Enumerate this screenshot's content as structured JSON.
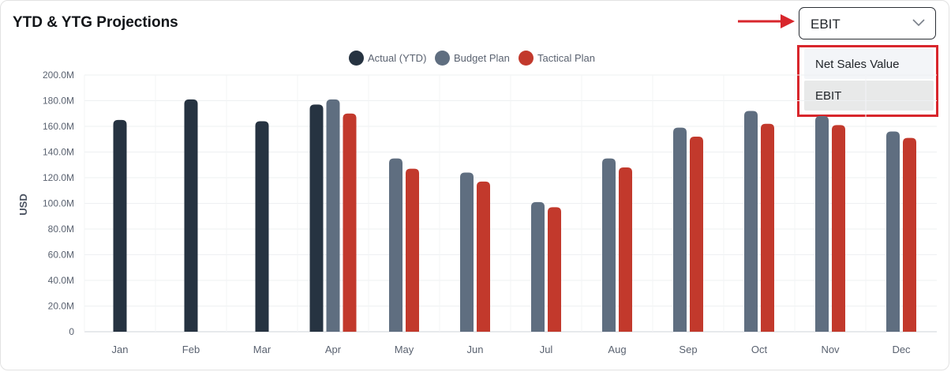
{
  "header": {
    "title": "YTD & YTG Projections"
  },
  "metric_select": {
    "value": "EBIT",
    "options": [
      "Net Sales Value",
      "EBIT"
    ]
  },
  "colors": {
    "actual": "#263341",
    "budget": "#5f6e80",
    "tactical": "#c2392c",
    "annotation": "#d8262c"
  },
  "chart_data": {
    "type": "bar",
    "title": "",
    "xlabel": "",
    "ylabel": "USD",
    "ylim": [
      0,
      200
    ],
    "y_ticks": [
      "0",
      "20.0M",
      "40.0M",
      "60.0M",
      "80.0M",
      "100.0M",
      "120.0M",
      "140.0M",
      "160.0M",
      "180.0M",
      "200.0M"
    ],
    "categories": [
      "Jan",
      "Feb",
      "Mar",
      "Apr",
      "May",
      "Jun",
      "Jul",
      "Aug",
      "Sep",
      "Oct",
      "Nov",
      "Dec"
    ],
    "legend_position": "top-center",
    "grid": true,
    "series": [
      {
        "name": "Actual (YTD)",
        "color": "#263341",
        "values": [
          165,
          181,
          164,
          177,
          null,
          null,
          null,
          null,
          null,
          null,
          null,
          null
        ]
      },
      {
        "name": "Budget Plan",
        "color": "#5f6e80",
        "values": [
          null,
          null,
          null,
          181,
          135,
          124,
          101,
          135,
          159,
          172,
          168,
          156
        ]
      },
      {
        "name": "Tactical Plan",
        "color": "#c2392c",
        "values": [
          null,
          null,
          null,
          170,
          127,
          117,
          97,
          128,
          152,
          162,
          161,
          151
        ]
      }
    ]
  }
}
